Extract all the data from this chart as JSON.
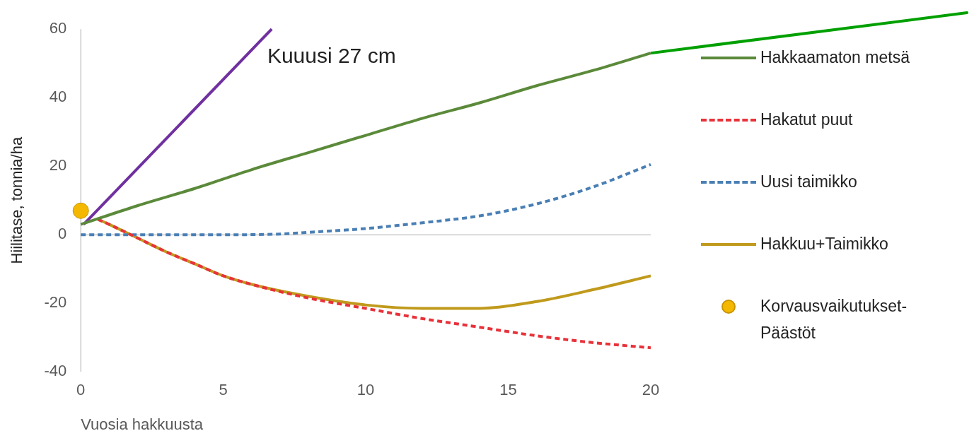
{
  "chart_data": {
    "type": "line",
    "xlabel": "Vuosia hakkuusta",
    "ylabel": "Hiilitase, tonnia/ha",
    "annotations": [
      "Kuuusi 27 cm"
    ],
    "xlim": [
      0,
      20
    ],
    "xticks": [
      0,
      5,
      10,
      15,
      20
    ],
    "ylim": [
      -40,
      60
    ],
    "yticks": [
      -40,
      -20,
      0,
      20,
      40,
      60
    ],
    "grid": false,
    "legend": "right",
    "ref_lines": [
      {
        "axis": "y",
        "value": 0,
        "color": "#d9d9d9"
      }
    ],
    "series": [
      {
        "name": "Hakkaamaton metsä",
        "color": "#5b8a3a",
        "x": [
          0,
          2,
          4,
          6,
          8,
          10,
          12,
          14,
          16,
          18,
          20
        ],
        "values": [
          3,
          8.5,
          13.5,
          19,
          24,
          29,
          34,
          38.5,
          43.5,
          48,
          53
        ]
      },
      {
        "name": "Hakatut puut",
        "color": "#e8323a",
        "line_style": "dashed",
        "x": [
          0.6,
          1,
          2,
          3,
          4,
          5,
          6,
          8,
          10,
          12,
          14,
          16,
          18,
          20
        ],
        "values": [
          4.5,
          3,
          -1,
          -5,
          -8.5,
          -12,
          -14.5,
          -18.5,
          -21.5,
          -24.5,
          -27,
          -29.5,
          -31.5,
          -33
        ]
      },
      {
        "name": "Uusi taimikko",
        "color": "#4a7fb5",
        "line_style": "dashed",
        "x": [
          0,
          5,
          7,
          8,
          10,
          12,
          14,
          16,
          18,
          20
        ],
        "values": [
          0,
          0,
          0.2,
          0.7,
          1.8,
          3.5,
          5.5,
          9,
          14,
          20.5
        ]
      },
      {
        "name": "Hakkuu+Taimikko",
        "color": "#c09a1c",
        "x": [
          0.6,
          1,
          2,
          3,
          4,
          5,
          6,
          8,
          10,
          12,
          14,
          16,
          18,
          20
        ],
        "values": [
          4.5,
          3,
          -1,
          -5,
          -8.5,
          -12,
          -14.5,
          -18,
          -20.5,
          -21.5,
          -21.5,
          -19.5,
          -16,
          -12
        ]
      },
      {
        "name": "Korvausvaikutukset-Päästöt",
        "type": "scatter",
        "marker": "circle",
        "color": "#f5b800",
        "x": [
          0
        ],
        "values": [
          7
        ]
      },
      {
        "color": "#7030a0",
        "x": [
          0.1,
          6.7
        ],
        "values": [
          3,
          60
        ]
      }
    ]
  }
}
